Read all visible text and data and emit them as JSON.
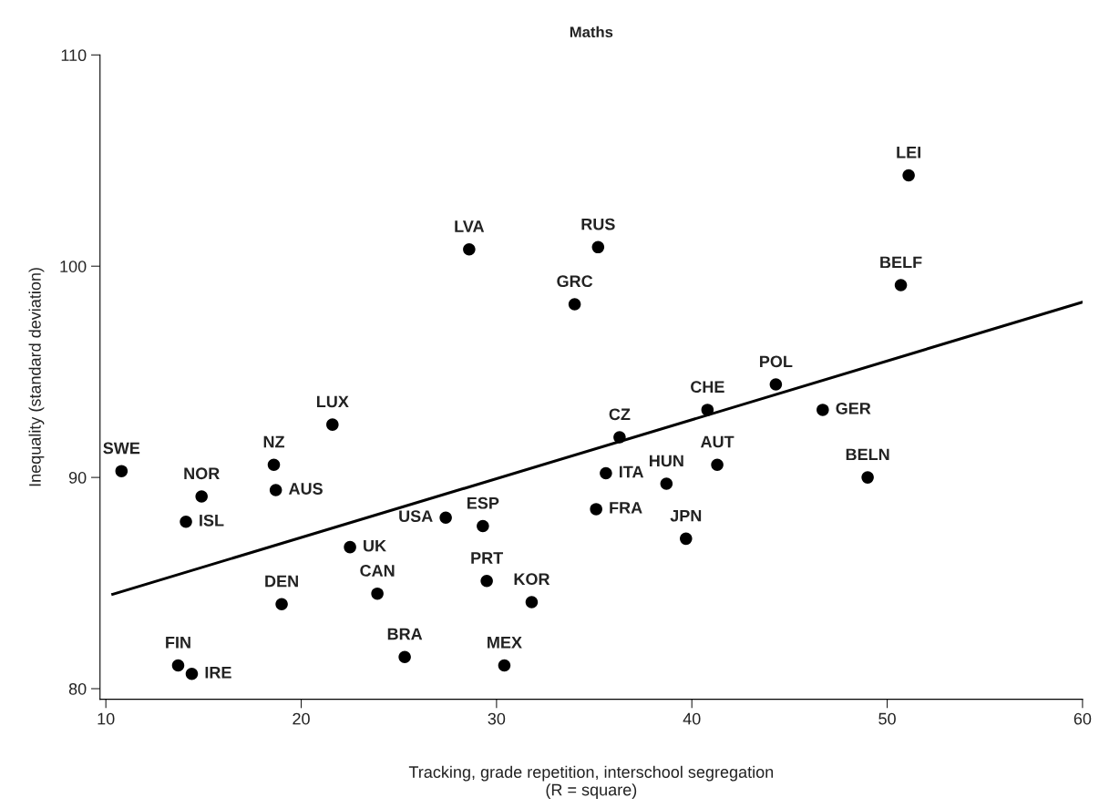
{
  "chart_data": {
    "type": "scatter",
    "title": "Maths",
    "xlabel": "Tracking, grade repetition, interschool segregation\n(R = square)",
    "ylabel": "Inequality (standard deviation)",
    "xlim": [
      9.7,
      60
    ],
    "xticks": [
      10,
      20,
      30,
      40,
      50,
      60
    ],
    "ylim": [
      79.5,
      110
    ],
    "yticks": [
      80,
      90,
      100,
      110
    ],
    "grid": false,
    "series": [
      {
        "color": "#000000",
        "marker": "circle",
        "x": [
          10.8,
          14.9,
          14.1,
          18.6,
          18.7,
          21.6,
          22.5,
          19.0,
          23.9,
          27.4,
          29.3,
          29.5,
          31.8,
          25.3,
          30.4,
          13.7,
          14.4,
          36.3,
          35.6,
          35.1,
          38.7,
          39.7,
          41.3,
          40.8,
          44.3,
          46.7,
          49.0,
          51.1,
          50.7,
          35.2,
          34.0,
          28.6
        ],
        "values": [
          90.3,
          89.1,
          87.9,
          90.6,
          89.4,
          92.5,
          86.7,
          84.0,
          84.5,
          88.1,
          87.7,
          85.1,
          84.1,
          81.5,
          81.1,
          81.1,
          80.7,
          91.9,
          90.2,
          88.5,
          89.7,
          87.1,
          90.6,
          93.2,
          94.4,
          93.2,
          90.0,
          104.3,
          99.1,
          100.9,
          98.2,
          100.8
        ],
        "value_labels": [
          "SWE",
          "NOR",
          "ISL",
          "NZ",
          "AUS",
          "LUX",
          "UK",
          "DEN",
          "CAN",
          "USA",
          "ESP",
          "PRT",
          "KOR",
          "BRA",
          "MEX",
          "FIN",
          "IRE",
          "CZ",
          "ITA",
          "FRA",
          "HUN",
          "JPN",
          "AUT",
          "CHE",
          "POL",
          "GER",
          "BELN",
          "LEI",
          "BELF",
          "RUS",
          "GRC",
          "LVA"
        ]
      },
      {
        "type": "line",
        "color": "#000000",
        "x": [
          10.35,
          60
        ],
        "values": [
          84.47,
          98.3
        ]
      }
    ]
  }
}
